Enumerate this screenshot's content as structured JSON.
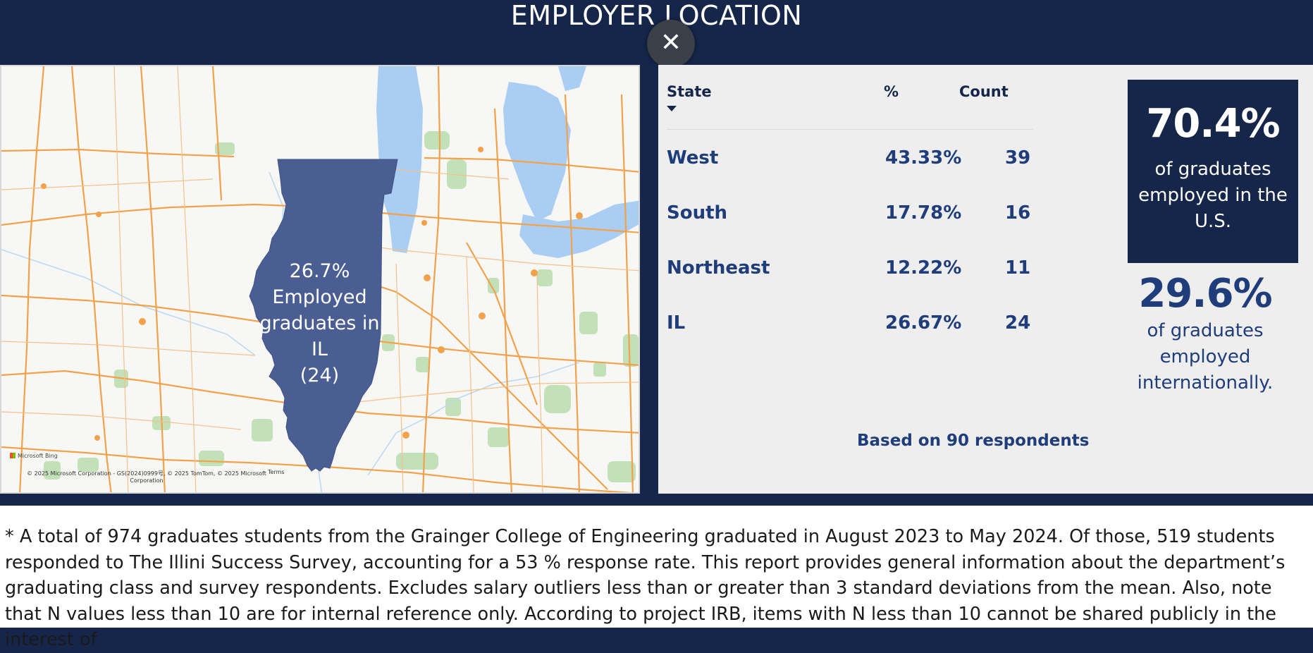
{
  "header": {
    "title": "EMPLOYER LOCATION",
    "close_icon": "close-icon"
  },
  "map": {
    "highlight_state": "IL",
    "label": "26.7%\nEmployed\ngraduates in IL\n(24)",
    "brand": "Microsoft Bing",
    "copyright": "© 2025 Microsoft Corporation - GS(2024)0999号, © 2025 TomTom, © 2025 Microsoft Corporation",
    "terms": "Terms",
    "colors": {
      "state_fill": "#4b5e94",
      "water": "#a9cdf3",
      "roads": "#f3a14a",
      "parks": "#bfe0b5"
    }
  },
  "table": {
    "headers": {
      "state": "State",
      "pct": "%",
      "count": "Count"
    },
    "rows": [
      {
        "state": "West",
        "pct": "43.33%",
        "count": "39"
      },
      {
        "state": "South",
        "pct": "17.78%",
        "count": "16"
      },
      {
        "state": "Northeast",
        "pct": "12.22%",
        "count": "11"
      },
      {
        "state": "IL",
        "pct": "26.67%",
        "count": "24"
      }
    ],
    "respondents": "Based on 90 respondents"
  },
  "stats": {
    "us_pct": "70.4%",
    "us_label": "of graduates employed in the U.S.",
    "intl_pct": "29.6%",
    "intl_label": "of graduates employed internationally."
  },
  "footnote": "* A total of 974 graduates students from the Grainger College of Engineering graduated in August  2023 to May 2024. Of those, 519 students responded to The Illini Success Survey, accounting for a 53 % response rate.  This report provides general information about the department’s graduating class and survey respondents. Excludes salary outliers less than or greater than 3 standard deviations from the mean. Also, note that N values less than 10 are for internal reference only. According to project IRB, items with N less than 10 cannot be shared publicly in the interest of"
}
